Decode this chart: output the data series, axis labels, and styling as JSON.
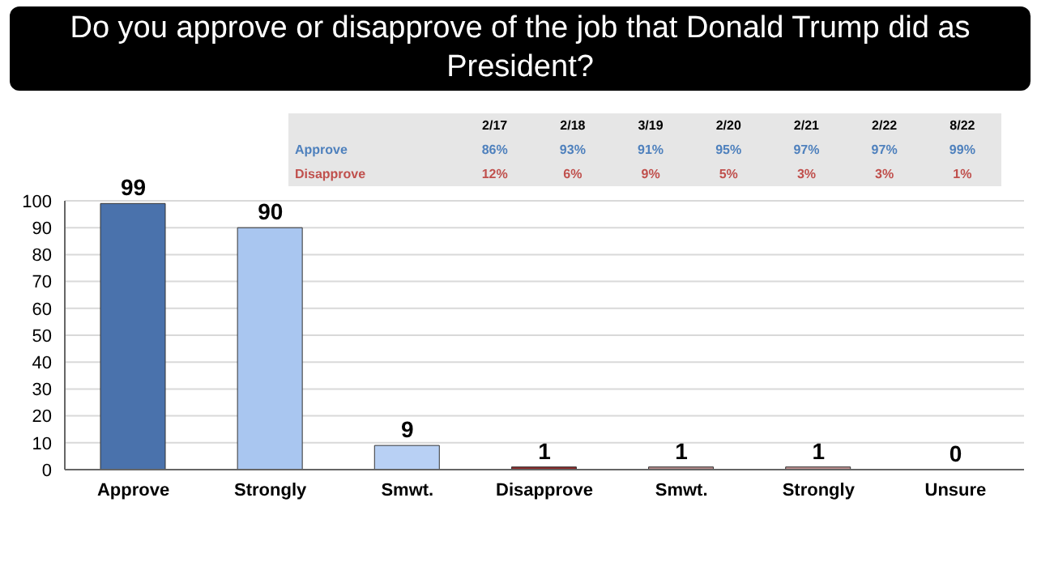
{
  "chart_data": {
    "type": "bar",
    "title": "Do you approve or disapprove of the job that Donald Trump did as President?",
    "categories": [
      "Approve",
      "Strongly",
      "Smwt.",
      "Disapprove",
      "Smwt.",
      "Strongly",
      "Unsure"
    ],
    "values": [
      99,
      90,
      9,
      1,
      1,
      1,
      0
    ],
    "colors": [
      "#4a72ac",
      "#a9c6f0",
      "#b8d0f4",
      "#8b2a2a",
      "#b48a8a",
      "#c09090",
      "#c0c0c0"
    ],
    "ylim": [
      0,
      100
    ],
    "yticks": [
      0,
      10,
      20,
      30,
      40,
      50,
      60,
      70,
      80,
      90,
      100
    ],
    "grid": "y",
    "data_labels": true,
    "legend": false,
    "annotations": [
      "2/17",
      "2/18",
      "3/19",
      "2/20",
      "2/21",
      "2/22",
      "8/22",
      "Approve",
      "86%",
      "93%",
      "91%",
      "95%",
      "97%",
      "97%",
      "99%",
      "Disapprove",
      "12%",
      "6%",
      "9%",
      "5%",
      "3%",
      "3%",
      "1%"
    ]
  }
}
